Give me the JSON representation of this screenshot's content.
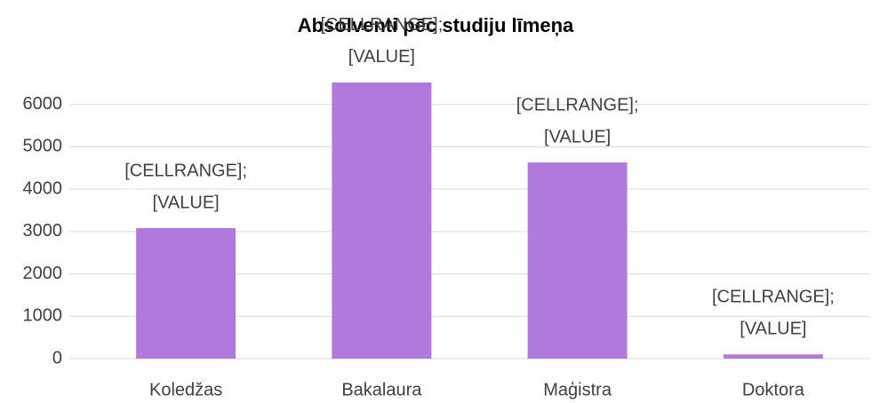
{
  "chart_data": {
    "type": "bar",
    "title": "Absolventi pēc studiju līmeņa",
    "categories": [
      "Koledžas",
      "Bakalaura",
      "Maģistra",
      "Doktora"
    ],
    "values": [
      3080,
      6520,
      4630,
      100
    ],
    "data_labels": [
      [
        "[CELLRANGE];",
        "[VALUE]"
      ],
      [
        "[CELLRANGE];",
        "[VALUE]"
      ],
      [
        "[CELLRANGE];",
        "[VALUE]"
      ],
      [
        "[CELLRANGE];",
        "[VALUE]"
      ]
    ],
    "color": "#b279dc",
    "ylim": [
      0,
      7000
    ],
    "yticks": [
      0,
      1000,
      2000,
      3000,
      4000,
      5000,
      6000
    ],
    "grid": true
  }
}
